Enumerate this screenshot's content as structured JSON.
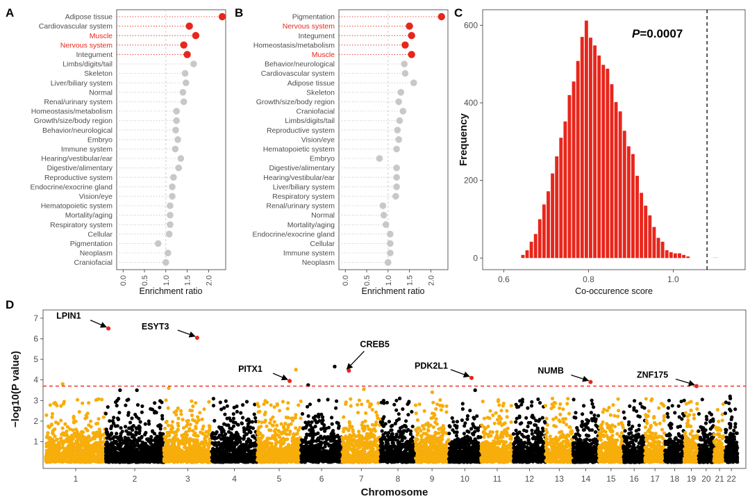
{
  "colors": {
    "highlight": "#e8261b",
    "normal": "#c8c8c8",
    "histogram": "#e8261b",
    "manhattan_a": "#f7ad0a",
    "manhattan_b": "#000000"
  },
  "chart_data": [
    {
      "panel": "A",
      "type": "scatter",
      "title": "",
      "xlabel": "Enrichment ratio",
      "ylabel": "",
      "xlim": [
        -0.15,
        2.4
      ],
      "xticks": [
        "0.0",
        "0.5",
        "1.0",
        "1.5",
        "2.0"
      ],
      "reference_line": 1.0,
      "categories": [
        "Adipose tissue",
        "Cardiovascular system",
        "Muscle",
        "Nervous system",
        "Integument",
        "Limbs/digits/tail",
        "Skeleton",
        "Liver/biliary system",
        "Normal",
        "Renal/urinary system",
        "Homeostasis/metabolism",
        "Growth/size/body region",
        "Behavior/neurological",
        "Embryo",
        "Immune system",
        "Hearing/vestibular/ear",
        "Digestive/alimentary",
        "Reproductive system",
        "Endocrine/exocrine gland",
        "Vision/eye",
        "Hematopoietic system",
        "Mortality/aging",
        "Respiratory system",
        "Cellular",
        "Pigmentation",
        "Neoplasm",
        "Craniofacial"
      ],
      "values": [
        2.32,
        1.55,
        1.7,
        1.42,
        1.5,
        1.65,
        1.45,
        1.47,
        1.4,
        1.42,
        1.25,
        1.25,
        1.23,
        1.28,
        1.22,
        1.35,
        1.3,
        1.18,
        1.15,
        1.15,
        1.1,
        1.1,
        1.1,
        1.08,
        0.82,
        1.05,
        1.0
      ],
      "highlighted": [
        true,
        true,
        true,
        true,
        true,
        false,
        false,
        false,
        false,
        false,
        false,
        false,
        false,
        false,
        false,
        false,
        false,
        false,
        false,
        false,
        false,
        false,
        false,
        false,
        false,
        false,
        false
      ],
      "label_highlighted": [
        false,
        false,
        true,
        true,
        false,
        false,
        false,
        false,
        false,
        false,
        false,
        false,
        false,
        false,
        false,
        false,
        false,
        false,
        false,
        false,
        false,
        false,
        false,
        false,
        false,
        false,
        false
      ]
    },
    {
      "panel": "B",
      "type": "scatter",
      "title": "",
      "xlabel": "Enrichment ratio",
      "ylabel": "",
      "xlim": [
        -0.15,
        2.4
      ],
      "xticks": [
        "0.0",
        "0.5",
        "1.0",
        "1.5",
        "2.0"
      ],
      "reference_line": 1.0,
      "categories": [
        "Pigmentation",
        "Nervous system",
        "Integument",
        "Homeostasis/metabolism",
        "Muscle",
        "Behavior/neurological",
        "Cardiovascular system",
        "Adipose tissue",
        "Skeleton",
        "Growth/size/body region",
        "Craniofacial",
        "Limbs/digits/tail",
        "Reproductive system",
        "Vision/eye",
        "Hematopoietic system",
        "Embryo",
        "Digestive/alimentary",
        "Hearing/vestibular/ear",
        "Liver/biliary system",
        "Respiratory system",
        "Renal/urinary system",
        "Normal",
        "Mortality/aging",
        "Endocrine/exocrine gland",
        "Cellular",
        "Immune system",
        "Neoplasm"
      ],
      "values": [
        2.25,
        1.5,
        1.55,
        1.4,
        1.55,
        1.38,
        1.4,
        1.6,
        1.3,
        1.25,
        1.35,
        1.27,
        1.22,
        1.25,
        1.2,
        0.8,
        1.2,
        1.2,
        1.2,
        1.18,
        0.88,
        0.9,
        0.95,
        1.05,
        1.05,
        1.05,
        1.0
      ],
      "highlighted": [
        true,
        true,
        true,
        true,
        true,
        false,
        false,
        false,
        false,
        false,
        false,
        false,
        false,
        false,
        false,
        false,
        false,
        false,
        false,
        false,
        false,
        false,
        false,
        false,
        false,
        false,
        false
      ],
      "label_highlighted": [
        false,
        true,
        false,
        false,
        true,
        false,
        false,
        false,
        false,
        false,
        false,
        false,
        false,
        false,
        false,
        false,
        false,
        false,
        false,
        false,
        false,
        false,
        false,
        false,
        false,
        false,
        false
      ]
    },
    {
      "panel": "C",
      "type": "bar",
      "title": "",
      "xlabel": "Co-occurence score",
      "ylabel": "Frequency",
      "xlim": [
        0.55,
        1.17
      ],
      "ylim": [
        -30,
        640
      ],
      "xticks": [
        "0.6",
        "0.8",
        "1.0"
      ],
      "yticks": [
        "0",
        "200",
        "400",
        "600"
      ],
      "annotation": {
        "italic": "P",
        "rest": "=0.0007"
      },
      "observed_line": 1.08,
      "bin_start": 0.64,
      "bin_width": 0.01,
      "values": [
        8,
        20,
        42,
        62,
        100,
        138,
        172,
        218,
        262,
        310,
        352,
        420,
        455,
        508,
        570,
        612,
        568,
        548,
        522,
        498,
        488,
        448,
        402,
        378,
        328,
        288,
        268,
        212,
        168,
        135,
        110,
        80,
        52,
        42,
        20,
        15,
        12,
        12,
        8,
        4
      ]
    },
    {
      "panel": "D",
      "type": "scatter",
      "title": "",
      "xlabel": "Chromosome",
      "ylabel": "−log10(P value)",
      "ylim": [
        -0.3,
        7.4
      ],
      "yticks": [
        "1",
        "2",
        "3",
        "4",
        "5",
        "6",
        "7"
      ],
      "threshold": 3.7,
      "chromosomes": [
        "1",
        "2",
        "3",
        "4",
        "5",
        "6",
        "7",
        "8",
        "9",
        "10",
        "11",
        "12",
        "13",
        "14",
        "15",
        "16",
        "17",
        "18",
        "19",
        "20",
        "21",
        "22"
      ],
      "chromosome_lengths": [
        248,
        242,
        198,
        190,
        181,
        171,
        159,
        145,
        138,
        134,
        135,
        133,
        114,
        107,
        102,
        90,
        83,
        80,
        59,
        64,
        47,
        51
      ],
      "genes": [
        {
          "name": "LPIN1",
          "chrom": 2,
          "pos": 11.8,
          "p": 6.5
        },
        {
          "name": "ESYT3",
          "chrom": 3,
          "pos": 138,
          "p": 6.05
        },
        {
          "name": "PITX1",
          "chrom": 5,
          "pos": 134,
          "p": 3.95
        },
        {
          "name": "CREB5",
          "chrom": 7,
          "pos": 28,
          "p": 4.45
        },
        {
          "name": "PDK2L1",
          "chrom": 10,
          "pos": 95,
          "p": 4.1
        },
        {
          "name": "NUMB",
          "chrom": 14,
          "pos": 73,
          "p": 3.9
        },
        {
          "name": "ZNF175",
          "chrom": 19,
          "pos": 51,
          "p": 3.7
        }
      ],
      "other_peaks": [
        {
          "chrom": 5,
          "pos": 160,
          "p": 4.5
        },
        {
          "chrom": 6,
          "pos": 140,
          "p": 4.65
        },
        {
          "chrom": 6,
          "pos": 30,
          "p": 3.75
        },
        {
          "chrom": 1,
          "pos": 70,
          "p": 3.8
        },
        {
          "chrom": 2,
          "pos": 130,
          "p": 3.5
        },
        {
          "chrom": 2,
          "pos": 60,
          "p": 3.5
        },
        {
          "chrom": 3,
          "pos": 20,
          "p": 3.6
        },
        {
          "chrom": 9,
          "pos": 70,
          "p": 3.4
        },
        {
          "chrom": 8,
          "pos": 80,
          "p": 3.1
        },
        {
          "chrom": 10,
          "pos": 110,
          "p": 3.5
        },
        {
          "chrom": 7,
          "pos": 90,
          "p": 3.55
        },
        {
          "chrom": 22,
          "pos": 20,
          "p": 3.2
        }
      ]
    }
  ]
}
